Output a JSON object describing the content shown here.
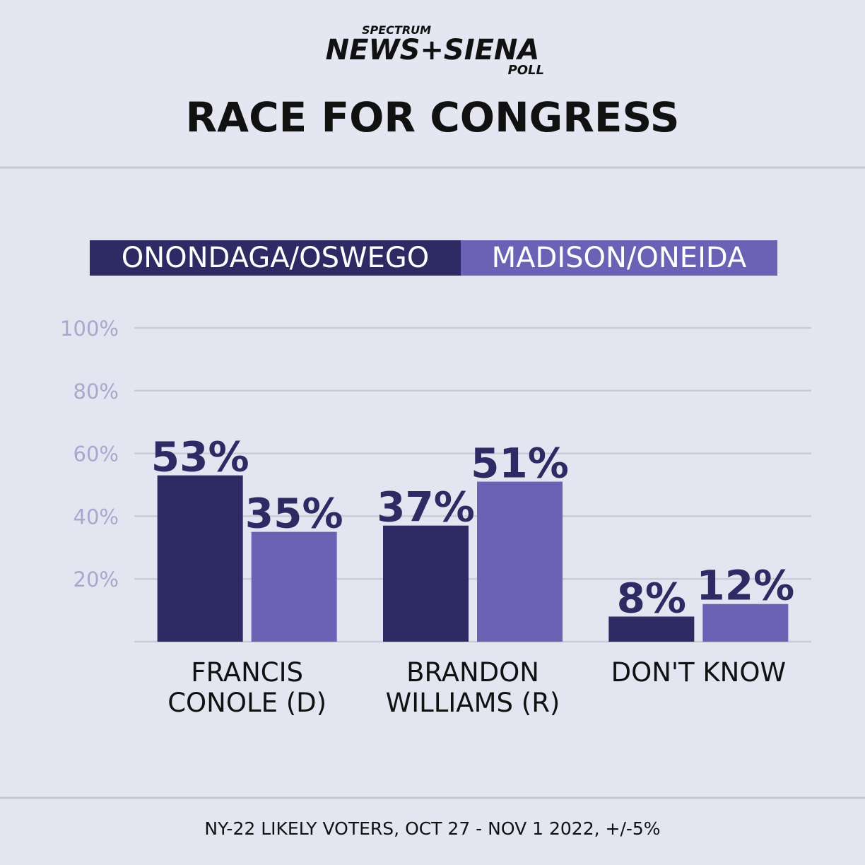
{
  "logo": {
    "top": "SPECTRUM",
    "main": "NEWS+SIENA",
    "bottom": "POLL"
  },
  "chart_data": {
    "type": "bar",
    "title": "RACE FOR CONGRESS",
    "categories": [
      "FRANCIS CONOLE (D)",
      "BRANDON WILLIAMS (R)",
      "DON'T KNOW"
    ],
    "series": [
      {
        "name": "ONONDAGA/OSWEGO",
        "color": "#2e2a63",
        "values": [
          53,
          37,
          8
        ],
        "value_labels": [
          "53%",
          "37%",
          "8%"
        ]
      },
      {
        "name": "MADISON/ONEIDA",
        "color": "#6c62b5",
        "values": [
          35,
          51,
          12
        ],
        "value_labels": [
          "35%",
          "51%",
          "12%"
        ]
      }
    ],
    "ylim": [
      0,
      100
    ],
    "yticks": [
      {
        "value": 20,
        "label": "20%"
      },
      {
        "value": 40,
        "label": "40%"
      },
      {
        "value": 60,
        "label": "60%"
      },
      {
        "value": 80,
        "label": "80%"
      },
      {
        "value": 100,
        "label": "100%"
      }
    ],
    "grid": true,
    "footnote": "NY-22 LIKELY VOTERS, OCT 27 - NOV 1 2022, +/-5%"
  }
}
